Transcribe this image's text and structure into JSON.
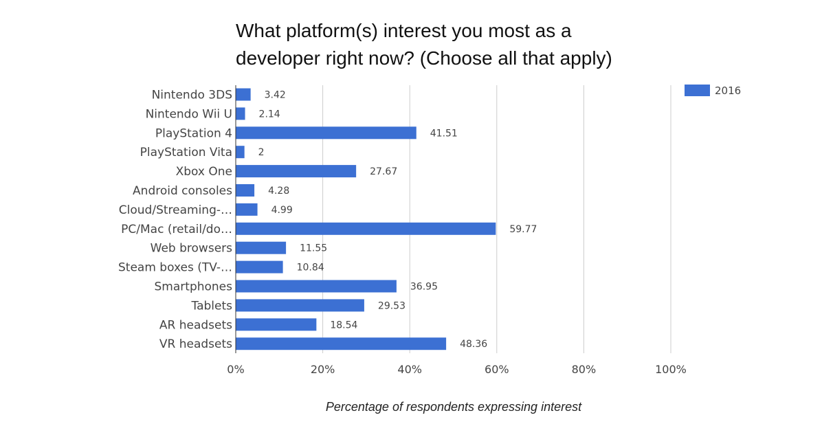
{
  "chart_data": {
    "type": "bar",
    "orientation": "horizontal",
    "title_lines": [
      "What platform(s) interest you most as a",
      "developer right now? (Choose all that apply)"
    ],
    "xlabel": "Percentage of respondents expressing interest",
    "ylabel": "",
    "xlim": [
      0,
      100
    ],
    "x_ticks": [
      0,
      20,
      40,
      60,
      80,
      100
    ],
    "x_tick_labels": [
      "0%",
      "20%",
      "40%",
      "60%",
      "80%",
      "100%"
    ],
    "grid": true,
    "legend_position": "top-right",
    "categories": [
      "Nintendo 3DS",
      "Nintendo Wii U",
      "PlayStation 4",
      "PlayStation Vita",
      "Xbox One",
      "Android consoles",
      "Cloud/Streaming-…",
      "PC/Mac (retail/do…",
      "Web browsers",
      "Steam boxes (TV-…",
      "Smartphones",
      "Tablets",
      "AR headsets",
      "VR headsets"
    ],
    "series": [
      {
        "name": "2016",
        "color": "#3c70d3",
        "values": [
          3.42,
          2.14,
          41.51,
          2,
          27.67,
          4.28,
          4.99,
          59.77,
          11.55,
          10.84,
          36.95,
          29.53,
          18.54,
          48.36
        ],
        "value_labels": [
          "3.42",
          "2.14",
          "41.51",
          "2",
          "27.67",
          "4.28",
          "4.99",
          "59.77",
          "11.55",
          "10.84",
          "36.95",
          "29.53",
          "18.54",
          "48.36"
        ]
      }
    ]
  }
}
